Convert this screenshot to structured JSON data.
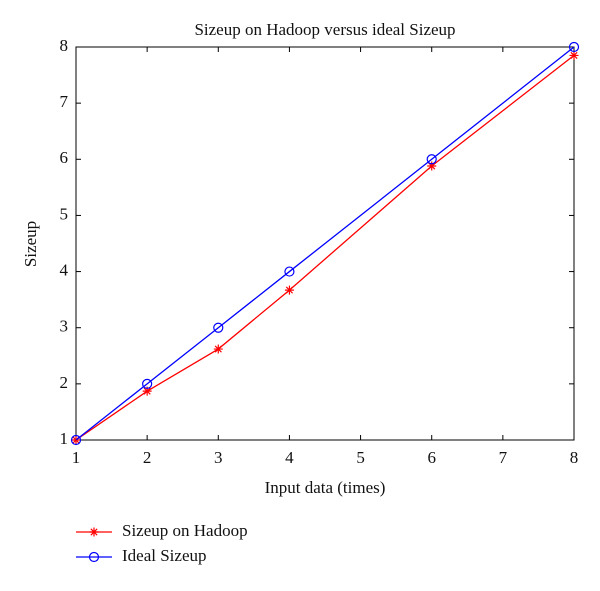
{
  "chart_data": {
    "type": "line",
    "title": "Sizeup on Hadoop versus ideal Sizeup",
    "x_label": "Input data (times)",
    "y_label": "Sizeup",
    "x": [
      1,
      2,
      3,
      4,
      6,
      8
    ],
    "series": [
      {
        "name": "Sizeup on Hadoop",
        "color": "#ff0000",
        "marker": "star",
        "values": [
          1,
          1.87,
          2.62,
          3.67,
          5.88,
          7.85
        ]
      },
      {
        "name": "Ideal Sizeup",
        "color": "#0000ff",
        "marker": "circle",
        "values": [
          1,
          2,
          3,
          4,
          6,
          8
        ]
      }
    ],
    "xlim": [
      1,
      8
    ],
    "ylim": [
      1,
      8
    ],
    "xticks": [
      1,
      2,
      3,
      4,
      5,
      6,
      7,
      8
    ],
    "yticks": [
      1,
      2,
      3,
      4,
      5,
      6,
      7,
      8
    ],
    "grid": false,
    "legend": "below"
  }
}
